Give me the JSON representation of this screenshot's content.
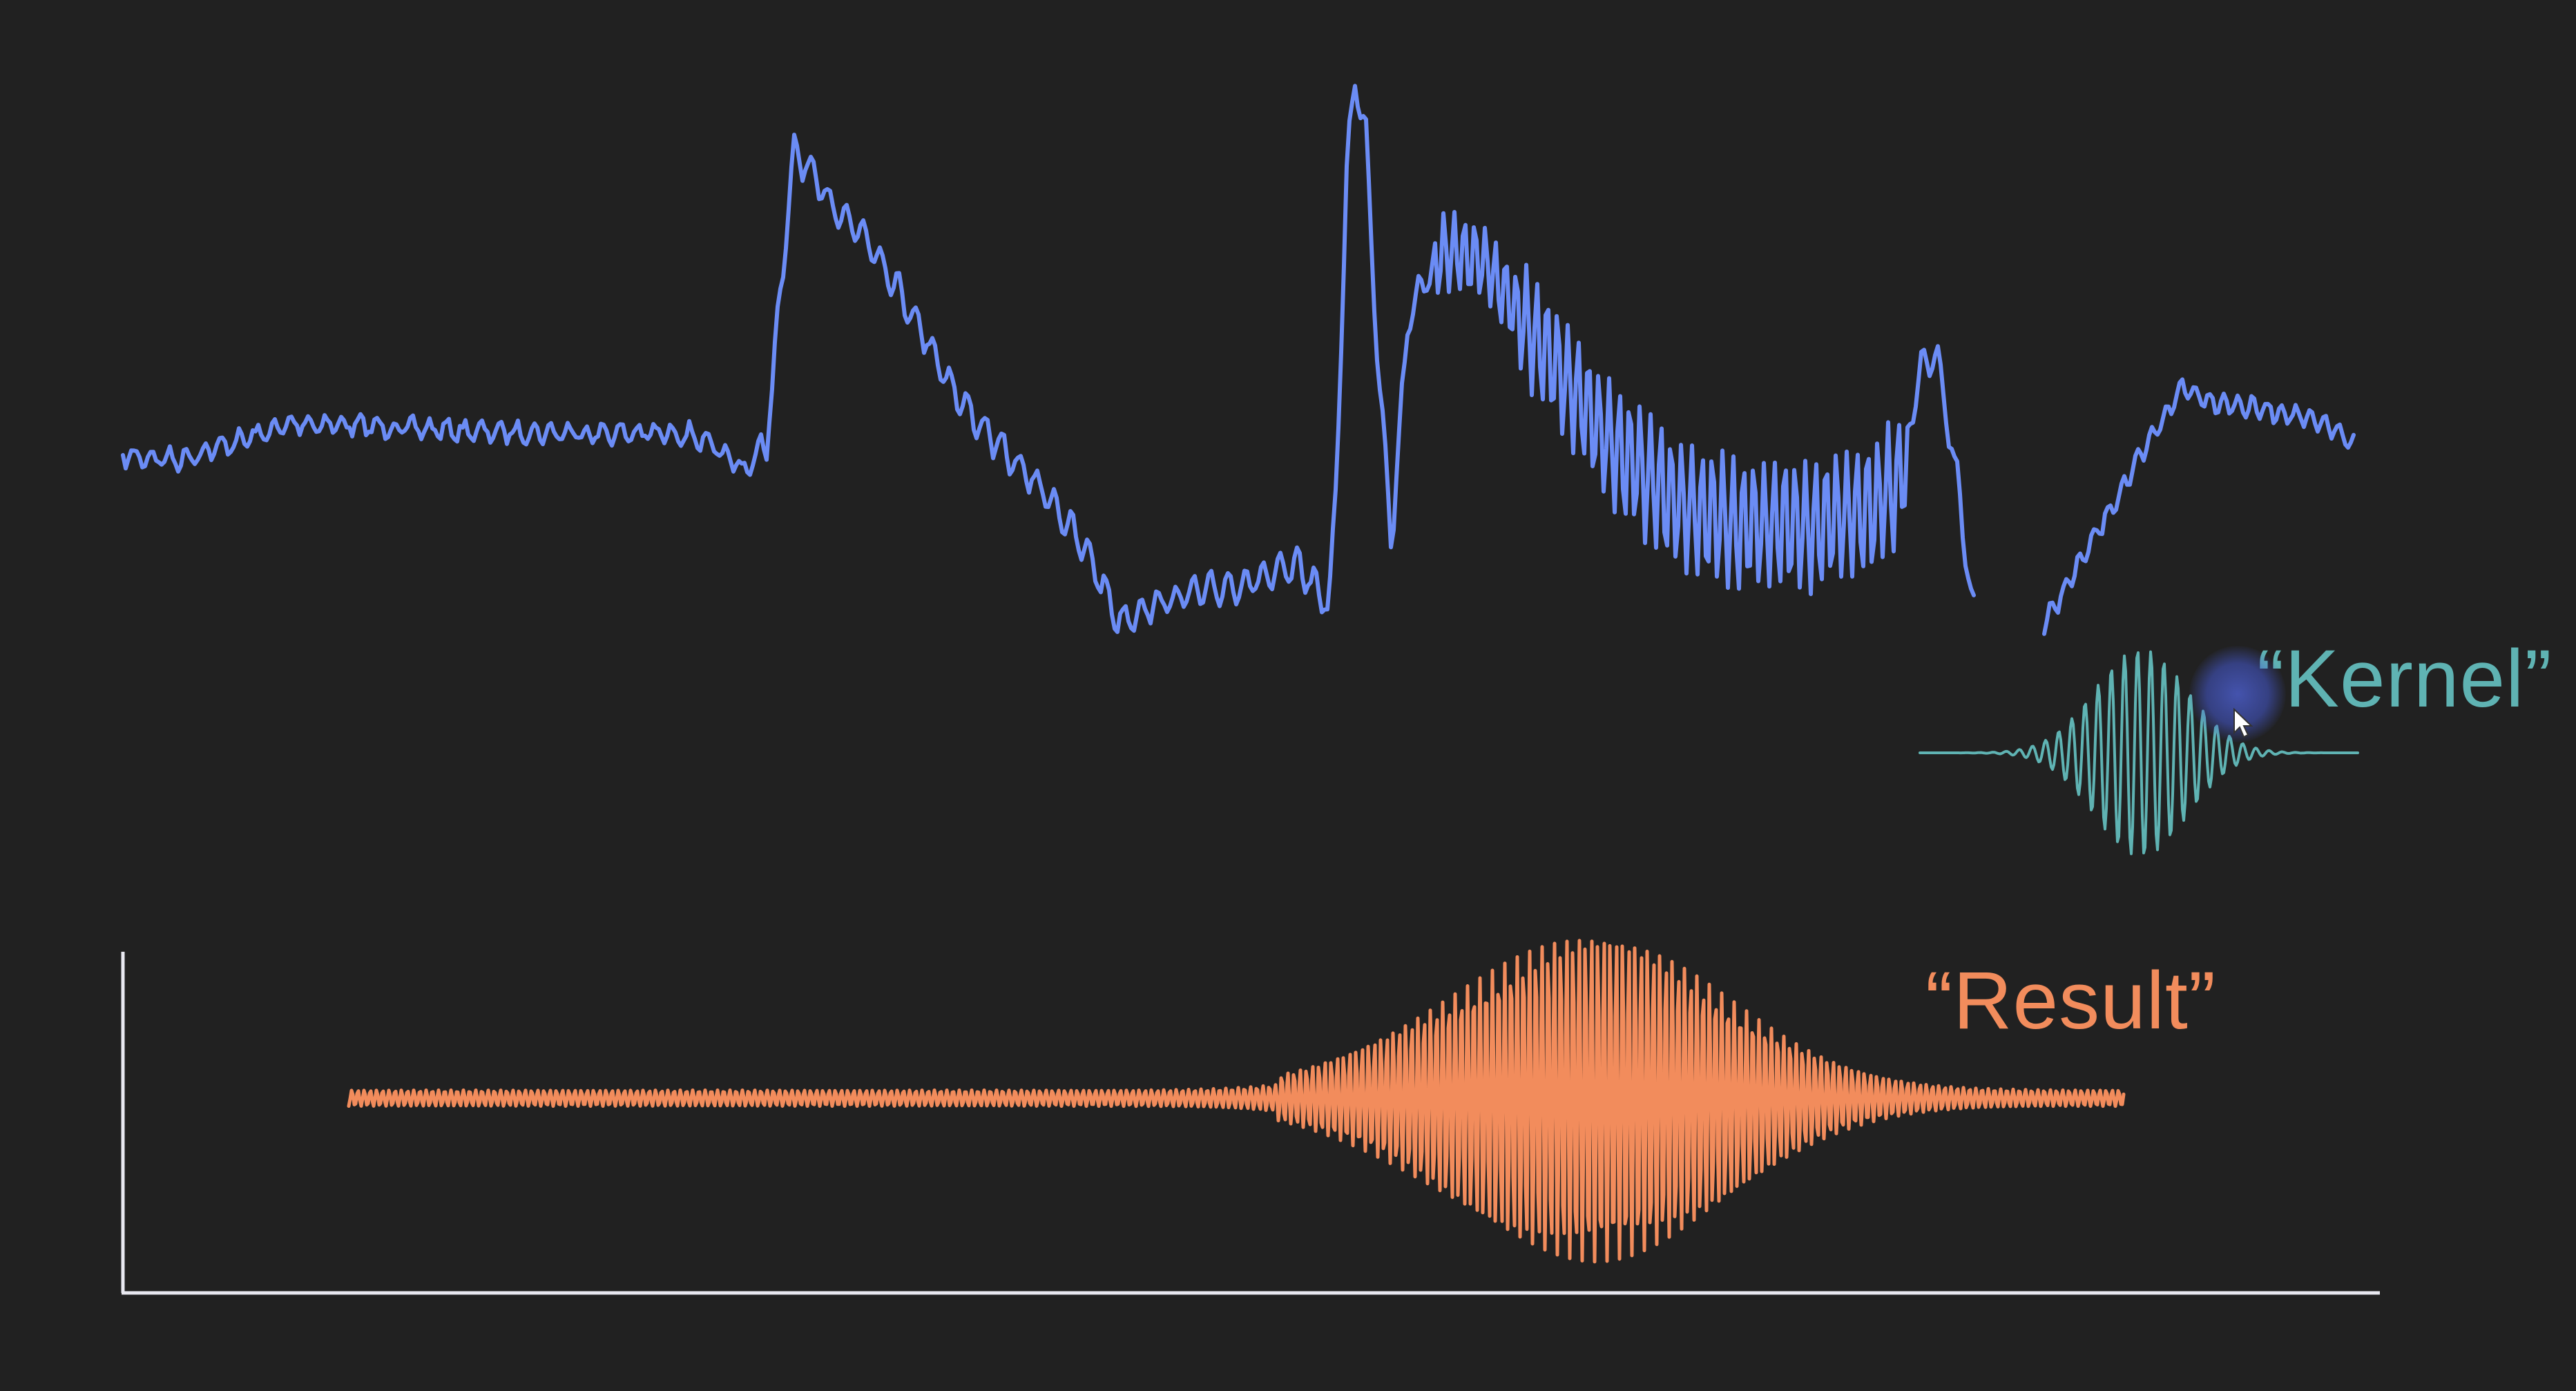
{
  "labels": {
    "kernel": "“Kernel”",
    "result": "“Result”"
  },
  "colors": {
    "background": "#212121",
    "signal": "#6b8cf5",
    "kernel": "#5fb3b3",
    "result": "#f28c5c",
    "axes": "#e8e8f0",
    "cursor_glow": "#4f64dc"
  },
  "icons": {
    "cursor": "mouse-pointer-arrow"
  }
}
